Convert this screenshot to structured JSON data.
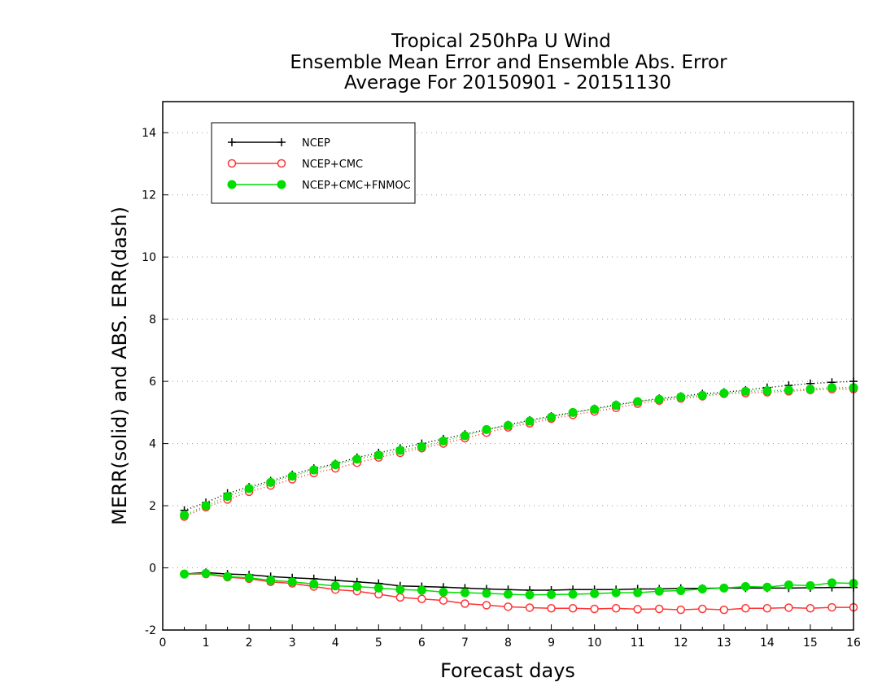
{
  "chart_data": {
    "type": "line",
    "title_lines": [
      "Tropical 250hPa U Wind",
      "Ensemble Mean Error and Ensemble Abs. Error",
      "Average For 20150901 - 20151130"
    ],
    "xlabel": "Forecast days",
    "ylabel": "MERR(solid) and ABS. ERR(dash)",
    "xlim": [
      0,
      16
    ],
    "ylim": [
      -2,
      15
    ],
    "xticks": [
      "0",
      "1",
      "2",
      "3",
      "4",
      "5",
      "6",
      "7",
      "8",
      "9",
      "10",
      "11",
      "12",
      "13",
      "14",
      "15",
      "16"
    ],
    "yticks": [
      "-2",
      "0",
      "2",
      "4",
      "6",
      "8",
      "10",
      "12",
      "14"
    ],
    "grid": "horizontal dotted",
    "legend_position": "top-left",
    "x": [
      0.5,
      1,
      1.5,
      2,
      2.5,
      3,
      3.5,
      4,
      4.5,
      5,
      5.5,
      6,
      6.5,
      7,
      7.5,
      8,
      8.5,
      9,
      9.5,
      10,
      10.5,
      11,
      11.5,
      12,
      12.5,
      13,
      13.5,
      14,
      14.5,
      15,
      15.5,
      16
    ],
    "series": [
      {
        "name": "NCEP",
        "color": "#000000",
        "marker": "plus",
        "merr": [
          -0.2,
          -0.15,
          -0.2,
          -0.22,
          -0.28,
          -0.32,
          -0.35,
          -0.4,
          -0.45,
          -0.5,
          -0.58,
          -0.6,
          -0.62,
          -0.65,
          -0.68,
          -0.7,
          -0.72,
          -0.72,
          -0.7,
          -0.7,
          -0.7,
          -0.68,
          -0.68,
          -0.66,
          -0.66,
          -0.65,
          -0.65,
          -0.65,
          -0.65,
          -0.64,
          -0.63,
          -0.63
        ],
        "abs_err": [
          1.85,
          2.1,
          2.4,
          2.6,
          2.8,
          3.0,
          3.2,
          3.35,
          3.55,
          3.7,
          3.85,
          4.0,
          4.15,
          4.3,
          4.45,
          4.6,
          4.75,
          4.88,
          5.0,
          5.12,
          5.25,
          5.35,
          5.45,
          5.52,
          5.6,
          5.65,
          5.72,
          5.8,
          5.87,
          5.93,
          5.97,
          6.0
        ]
      },
      {
        "name": "NCEP+CMC",
        "color": "#ff3333",
        "marker": "open-circle",
        "merr": [
          -0.2,
          -0.2,
          -0.3,
          -0.35,
          -0.45,
          -0.5,
          -0.6,
          -0.7,
          -0.75,
          -0.85,
          -0.95,
          -1.0,
          -1.05,
          -1.15,
          -1.2,
          -1.25,
          -1.28,
          -1.3,
          -1.3,
          -1.32,
          -1.3,
          -1.33,
          -1.32,
          -1.35,
          -1.32,
          -1.35,
          -1.3,
          -1.3,
          -1.28,
          -1.3,
          -1.27,
          -1.27
        ],
        "abs_err": [
          1.65,
          1.95,
          2.2,
          2.45,
          2.65,
          2.85,
          3.05,
          3.2,
          3.38,
          3.55,
          3.7,
          3.85,
          4.0,
          4.17,
          4.35,
          4.52,
          4.65,
          4.8,
          4.92,
          5.03,
          5.15,
          5.28,
          5.38,
          5.45,
          5.52,
          5.6,
          5.62,
          5.65,
          5.68,
          5.72,
          5.75,
          5.75
        ]
      },
      {
        "name": "NCEP+CMC+FNMOC",
        "color": "#00dd00",
        "marker": "filled-circle",
        "merr": [
          -0.2,
          -0.18,
          -0.28,
          -0.32,
          -0.4,
          -0.45,
          -0.52,
          -0.58,
          -0.6,
          -0.65,
          -0.7,
          -0.72,
          -0.78,
          -0.8,
          -0.82,
          -0.85,
          -0.87,
          -0.86,
          -0.85,
          -0.83,
          -0.8,
          -0.8,
          -0.75,
          -0.73,
          -0.68,
          -0.65,
          -0.6,
          -0.62,
          -0.55,
          -0.57,
          -0.48,
          -0.5
        ],
        "abs_err": [
          1.7,
          2.0,
          2.3,
          2.55,
          2.75,
          2.95,
          3.15,
          3.32,
          3.5,
          3.63,
          3.78,
          3.9,
          4.08,
          4.25,
          4.45,
          4.58,
          4.72,
          4.85,
          5.0,
          5.1,
          5.23,
          5.35,
          5.42,
          5.5,
          5.55,
          5.62,
          5.68,
          5.7,
          5.72,
          5.75,
          5.8,
          5.8
        ]
      }
    ]
  }
}
